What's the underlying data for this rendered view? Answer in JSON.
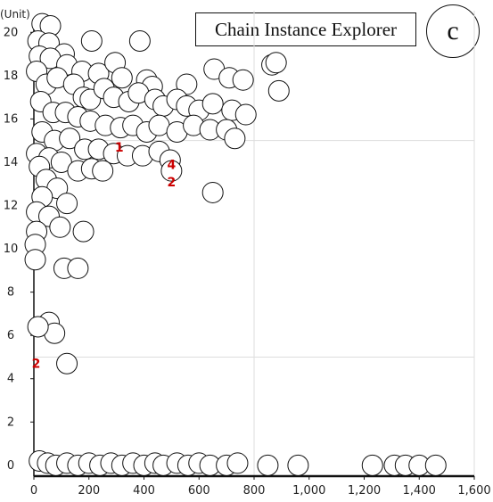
{
  "title": "Chain Instance Explorer",
  "badge": "c",
  "chart_data": {
    "type": "scatter",
    "marker": "circle",
    "y_unit": "(Unit)",
    "xlim": [
      0,
      1600
    ],
    "ylim": [
      -0.5,
      21
    ],
    "x_ticks": [
      {
        "value": 0,
        "label": "0"
      },
      {
        "value": 200,
        "label": "200"
      },
      {
        "value": 400,
        "label": "400"
      },
      {
        "value": 600,
        "label": "600"
      },
      {
        "value": 800,
        "label": "800"
      },
      {
        "value": 1000,
        "label": "1,000"
      },
      {
        "value": 1200,
        "label": "1,200"
      },
      {
        "value": 1400,
        "label": "1,400"
      },
      {
        "value": 1600,
        "label": "1,600"
      }
    ],
    "y_ticks": [
      0,
      2,
      4,
      6,
      8,
      10,
      12,
      14,
      16,
      18,
      20
    ],
    "grid": {
      "x": [
        800,
        1600
      ],
      "y": [
        5,
        15
      ]
    },
    "colors": {
      "marker_fill": "#ffffff",
      "marker_stroke": "#111111",
      "label": "#cc0000",
      "grid": "#dddddd"
    },
    "cluster_labels": [
      {
        "text": "4",
        "x": 500,
        "y": 13.9
      },
      {
        "text": "2",
        "x": 500,
        "y": 13.1
      },
      {
        "text": "1",
        "x": 310,
        "y": 14.7
      },
      {
        "text": "2",
        "x": 8,
        "y": 4.7
      }
    ],
    "points": [
      [
        30,
        20.4
      ],
      [
        60,
        20.3
      ],
      [
        15,
        19.6
      ],
      [
        55,
        19.5
      ],
      [
        110,
        19.0
      ],
      [
        210,
        19.6
      ],
      [
        385,
        19.6
      ],
      [
        20,
        18.9
      ],
      [
        60,
        18.8
      ],
      [
        120,
        18.5
      ],
      [
        175,
        18.2
      ],
      [
        235,
        18.1
      ],
      [
        295,
        18.6
      ],
      [
        320,
        17.9
      ],
      [
        410,
        17.8
      ],
      [
        430,
        17.5
      ],
      [
        555,
        17.6
      ],
      [
        655,
        18.3
      ],
      [
        710,
        17.9
      ],
      [
        760,
        17.8
      ],
      [
        865,
        18.5
      ],
      [
        880,
        18.6
      ],
      [
        890,
        17.3
      ],
      [
        10,
        18.2
      ],
      [
        45,
        17.6
      ],
      [
        85,
        17.9
      ],
      [
        145,
        17.6
      ],
      [
        180,
        17.0
      ],
      [
        205,
        16.9
      ],
      [
        255,
        17.4
      ],
      [
        290,
        17.0
      ],
      [
        345,
        16.8
      ],
      [
        380,
        17.2
      ],
      [
        440,
        16.9
      ],
      [
        470,
        16.6
      ],
      [
        520,
        16.9
      ],
      [
        555,
        16.6
      ],
      [
        600,
        16.4
      ],
      [
        650,
        16.7
      ],
      [
        720,
        16.4
      ],
      [
        770,
        16.2
      ],
      [
        25,
        16.8
      ],
      [
        70,
        16.3
      ],
      [
        115,
        16.3
      ],
      [
        160,
        16.1
      ],
      [
        205,
        15.9
      ],
      [
        260,
        15.7
      ],
      [
        315,
        15.6
      ],
      [
        360,
        15.7
      ],
      [
        410,
        15.4
      ],
      [
        455,
        15.7
      ],
      [
        520,
        15.4
      ],
      [
        580,
        15.7
      ],
      [
        640,
        15.5
      ],
      [
        700,
        15.5
      ],
      [
        730,
        15.1
      ],
      [
        30,
        15.4
      ],
      [
        75,
        15.0
      ],
      [
        130,
        15.1
      ],
      [
        185,
        14.6
      ],
      [
        235,
        14.6
      ],
      [
        290,
        14.4
      ],
      [
        340,
        14.3
      ],
      [
        395,
        14.3
      ],
      [
        455,
        14.5
      ],
      [
        10,
        14.4
      ],
      [
        55,
        14.2
      ],
      [
        100,
        14.0
      ],
      [
        160,
        13.6
      ],
      [
        210,
        13.7
      ],
      [
        250,
        13.6
      ],
      [
        495,
        14.1
      ],
      [
        500,
        13.6
      ],
      [
        20,
        13.8
      ],
      [
        45,
        13.2
      ],
      [
        85,
        12.8
      ],
      [
        30,
        12.4
      ],
      [
        120,
        12.1
      ],
      [
        10,
        11.7
      ],
      [
        55,
        11.5
      ],
      [
        95,
        11.0
      ],
      [
        10,
        10.8
      ],
      [
        180,
        10.8
      ],
      [
        650,
        12.6
      ],
      [
        5,
        10.2
      ],
      [
        5,
        9.5
      ],
      [
        110,
        9.1
      ],
      [
        160,
        9.1
      ],
      [
        55,
        6.6
      ],
      [
        75,
        6.1
      ],
      [
        15,
        6.4
      ],
      [
        120,
        4.7
      ],
      [
        20,
        0.2
      ],
      [
        50,
        0.1
      ],
      [
        80,
        0.0
      ],
      [
        120,
        0.1
      ],
      [
        160,
        0.0
      ],
      [
        200,
        0.1
      ],
      [
        240,
        0.0
      ],
      [
        280,
        0.1
      ],
      [
        320,
        0.0
      ],
      [
        360,
        0.1
      ],
      [
        400,
        0.0
      ],
      [
        440,
        0.1
      ],
      [
        470,
        0.0
      ],
      [
        520,
        0.1
      ],
      [
        560,
        0.0
      ],
      [
        600,
        0.1
      ],
      [
        640,
        0.0
      ],
      [
        700,
        0.0
      ],
      [
        740,
        0.1
      ],
      [
        850,
        0.0
      ],
      [
        960,
        0.0
      ],
      [
        1230,
        0.0
      ],
      [
        1310,
        0.0
      ],
      [
        1350,
        0.0
      ],
      [
        1400,
        0.0
      ],
      [
        1460,
        0.0
      ]
    ]
  }
}
